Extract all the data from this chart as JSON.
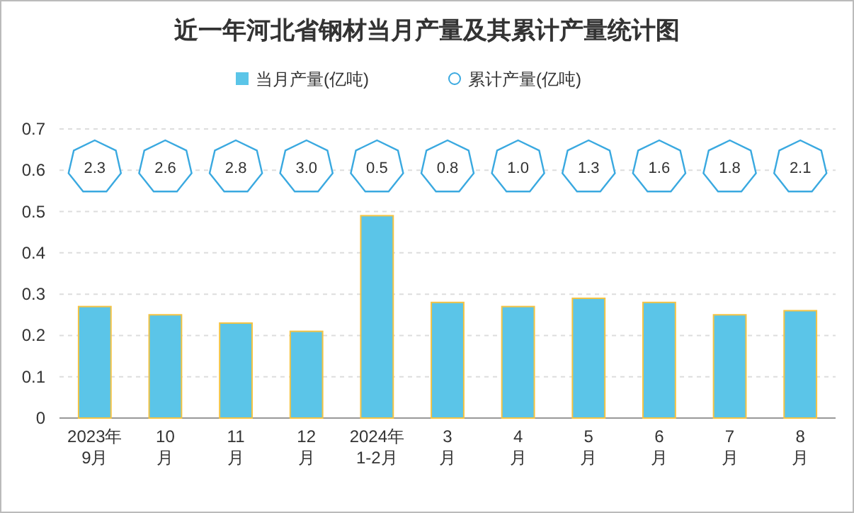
{
  "chart_data": {
    "type": "bar",
    "title": "近一年河北省钢材当月产量及其累计产量统计图",
    "categories": [
      "2023年9月",
      "10月",
      "11月",
      "12月",
      "2024年1-2月",
      "3月",
      "4月",
      "5月",
      "6月",
      "7月",
      "8月"
    ],
    "series": [
      {
        "name": "当月产量(亿吨)",
        "color": "#5bc5e8",
        "values": [
          0.27,
          0.25,
          0.23,
          0.21,
          0.49,
          0.28,
          0.27,
          0.29,
          0.28,
          0.25,
          0.26
        ]
      },
      {
        "name": "累计产量(亿吨)",
        "type": "other",
        "color": "#3aa9e0",
        "values": [
          null,
          null,
          null,
          null,
          null,
          null,
          null,
          null,
          null,
          null,
          null
        ]
      }
    ],
    "annotations": [
      {
        "text": "2.3",
        "x": "2023年9月"
      },
      {
        "text": "2.6",
        "x": "10月"
      },
      {
        "text": "2.8",
        "x": "11月"
      },
      {
        "text": "3.0",
        "x": "12月"
      },
      {
        "text": "0.5",
        "x": "2024年1-2月"
      },
      {
        "text": "0.8",
        "x": "3月"
      },
      {
        "text": "1.0",
        "x": "4月"
      },
      {
        "text": "1.3",
        "x": "5月"
      },
      {
        "text": "1.6",
        "x": "6月"
      },
      {
        "text": "1.8",
        "x": "7月"
      },
      {
        "text": "2.1",
        "x": "8月"
      }
    ],
    "ylim": [
      0,
      0.7
    ],
    "yticks": [
      0,
      0.1,
      0.2,
      0.3,
      0.4,
      0.5,
      0.6,
      0.7
    ],
    "grid": "y",
    "legend": "top"
  }
}
